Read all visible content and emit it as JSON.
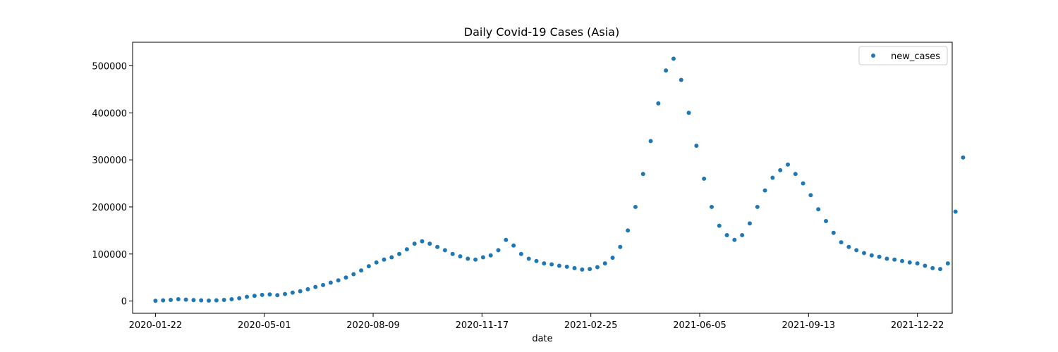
{
  "chart_data": {
    "type": "scatter",
    "title": "Daily Covid-19 Cases (Asia)",
    "xlabel": "date",
    "ylabel": "",
    "x_ticks": [
      "2020-01-22",
      "2020-05-01",
      "2020-08-09",
      "2020-11-17",
      "2021-02-25",
      "2021-06-05",
      "2021-09-13",
      "2021-12-22"
    ],
    "y_ticks": [
      0,
      100000,
      200000,
      300000,
      400000,
      500000
    ],
    "y_tick_labels": [
      "0",
      "100000",
      "200000",
      "300000",
      "400000",
      "500000"
    ],
    "xlim": [
      "2020-01-01",
      "2022-01-23"
    ],
    "ylim": [
      -26000,
      550000
    ],
    "legend": "top-right",
    "grid": false,
    "series": [
      {
        "name": "new_cases",
        "color": "#1f77b4",
        "start_date": "2020-01-22",
        "step_days": 7,
        "values": [
          500,
          1500,
          2500,
          4000,
          3000,
          2000,
          1500,
          1000,
          1500,
          2500,
          4000,
          6000,
          9000,
          11000,
          13000,
          14000,
          12500,
          15000,
          18000,
          21000,
          25000,
          30000,
          34000,
          39000,
          44000,
          50000,
          57000,
          65000,
          74000,
          82000,
          88000,
          93000,
          100000,
          110000,
          122000,
          127000,
          122000,
          115000,
          108000,
          100000,
          95000,
          90000,
          88000,
          93000,
          97000,
          108000,
          130000,
          118000,
          100000,
          90000,
          85000,
          80000,
          78000,
          75000,
          73000,
          70000,
          67000,
          68000,
          72000,
          80000,
          92000,
          115000,
          150000,
          200000,
          270000,
          340000,
          420000,
          490000,
          515000,
          470000,
          400000,
          330000,
          260000,
          200000,
          160000,
          140000,
          130000,
          140000,
          165000,
          200000,
          235000,
          262000,
          278000,
          290000,
          270000,
          250000,
          225000,
          195000,
          170000,
          145000,
          125000,
          115000,
          108000,
          102000,
          97000,
          94000,
          90000,
          88000,
          85000,
          82000,
          80000,
          75000,
          70000,
          68000,
          80000,
          190000,
          305000
        ]
      }
    ]
  }
}
